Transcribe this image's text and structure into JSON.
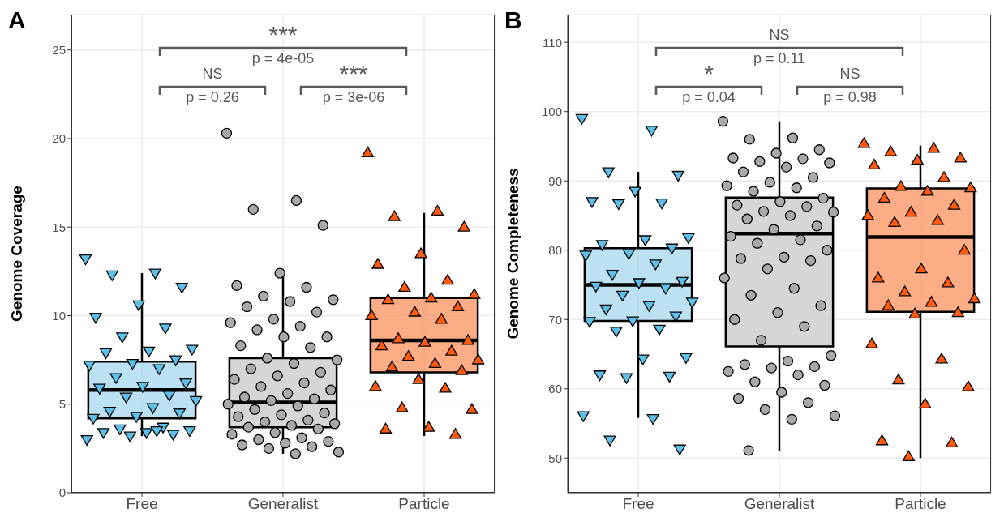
{
  "chart_data": [
    {
      "type": "box",
      "title": "A",
      "ylabel": "Genome Coverage",
      "categories": [
        "Free",
        "Generalist",
        "Particle"
      ],
      "colors": [
        "#9fd4ec",
        "#c4c4c4",
        "#fb8a52"
      ],
      "boxes": [
        {
          "low": 3.2,
          "q1": 4.2,
          "median": 5.8,
          "q3": 7.4,
          "high": 12.4
        },
        {
          "low": 2.2,
          "q1": 3.7,
          "median": 5.1,
          "q3": 7.6,
          "high": 12.3
        },
        {
          "low": 3.2,
          "q1": 6.8,
          "median": 8.6,
          "q3": 11.0,
          "high": 15.8
        }
      ],
      "series": [
        {
          "type": "scatter",
          "marker": "triangle-down",
          "color": "#5ec0e8",
          "x": [
            "Free",
            "Free",
            "Free",
            "Free",
            "Free",
            "Free",
            "Free",
            "Free",
            "Free",
            "Free",
            "Free",
            "Free",
            "Free",
            "Free",
            "Free",
            "Free",
            "Free",
            "Free",
            "Free",
            "Free",
            "Free",
            "Free",
            "Free",
            "Free",
            "Free",
            "Free",
            "Free",
            "Free",
            "Free",
            "Free",
            "Free",
            "Free",
            "Free",
            "Free",
            "Free",
            "Free"
          ],
          "values": [
            13.2,
            12.4,
            12.3,
            11.6,
            10.6,
            9.9,
            9.3,
            8.8,
            8.1,
            8.0,
            7.9,
            7.5,
            7.3,
            7.2,
            7.0,
            6.5,
            6.2,
            6.0,
            5.9,
            5.5,
            5.4,
            5.2,
            4.8,
            4.6,
            4.5,
            4.3,
            4.2,
            3.7,
            3.6,
            3.5,
            3.4,
            3.4,
            3.3,
            3.2,
            3.0,
            3.5
          ]
        },
        {
          "type": "scatter",
          "marker": "circle",
          "color": "#a9a9a9",
          "x": [
            "Generalist",
            "Generalist",
            "Generalist",
            "Generalist",
            "Generalist",
            "Generalist",
            "Generalist",
            "Generalist",
            "Generalist",
            "Generalist",
            "Generalist",
            "Generalist",
            "Generalist",
            "Generalist",
            "Generalist",
            "Generalist",
            "Generalist",
            "Generalist",
            "Generalist",
            "Generalist",
            "Generalist",
            "Generalist",
            "Generalist",
            "Generalist",
            "Generalist",
            "Generalist",
            "Generalist",
            "Generalist",
            "Generalist",
            "Generalist",
            "Generalist",
            "Generalist",
            "Generalist",
            "Generalist",
            "Generalist",
            "Generalist",
            "Generalist",
            "Generalist",
            "Generalist",
            "Generalist",
            "Generalist",
            "Generalist",
            "Generalist",
            "Generalist",
            "Generalist",
            "Generalist",
            "Generalist",
            "Generalist",
            "Generalist",
            "Generalist",
            "Generalist",
            "Generalist",
            "Generalist",
            "Generalist",
            "Generalist",
            "Generalist",
            "Generalist"
          ],
          "values": [
            20.3,
            16.5,
            16.0,
            15.1,
            12.4,
            11.7,
            11.6,
            11.1,
            10.9,
            10.8,
            10.5,
            10.2,
            9.8,
            9.6,
            9.4,
            9.2,
            8.8,
            8.8,
            8.3,
            8.2,
            7.6,
            7.5,
            7.3,
            7.0,
            6.8,
            6.6,
            6.4,
            6.2,
            6.0,
            5.8,
            5.6,
            5.4,
            5.3,
            5.2,
            5.0,
            4.9,
            4.7,
            4.5,
            4.4,
            4.3,
            4.1,
            4.0,
            3.9,
            3.8,
            3.7,
            3.6,
            3.4,
            3.3,
            3.1,
            3.0,
            2.9,
            2.8,
            2.7,
            2.6,
            2.5,
            2.3,
            2.2
          ]
        },
        {
          "type": "scatter",
          "marker": "triangle",
          "color": "#ff5a0e",
          "x": [
            "Particle",
            "Particle",
            "Particle",
            "Particle",
            "Particle",
            "Particle",
            "Particle",
            "Particle",
            "Particle",
            "Particle",
            "Particle",
            "Particle",
            "Particle",
            "Particle",
            "Particle",
            "Particle",
            "Particle",
            "Particle",
            "Particle",
            "Particle",
            "Particle",
            "Particle",
            "Particle",
            "Particle",
            "Particle",
            "Particle",
            "Particle",
            "Particle",
            "Particle",
            "Particle",
            "Particle",
            "Particle",
            "Particle"
          ],
          "values": [
            19.2,
            15.9,
            15.6,
            15.0,
            13.5,
            12.9,
            12.0,
            11.6,
            11.2,
            11.0,
            10.9,
            10.5,
            10.2,
            10.0,
            9.8,
            8.7,
            8.6,
            8.5,
            8.3,
            8.0,
            7.7,
            7.5,
            7.3,
            7.1,
            6.9,
            6.4,
            6.0,
            5.9,
            4.8,
            4.7,
            3.7,
            3.6,
            3.3
          ]
        }
      ],
      "ylim": [
        0,
        27
      ],
      "yticks": [
        0,
        5,
        10,
        15,
        20,
        25
      ],
      "grid": true,
      "annotations": [
        "***",
        "p = 4e-05",
        "NS",
        "p = 0.26",
        "***",
        "p = 3e-06"
      ]
    },
    {
      "type": "box",
      "title": "B",
      "ylabel": "Genome Completeness",
      "categories": [
        "Free",
        "Generalist",
        "Particle"
      ],
      "colors": [
        "#9fd4ec",
        "#c4c4c4",
        "#fb8a52"
      ],
      "boxes": [
        {
          "low": 55.8,
          "q1": 69.8,
          "median": 75.0,
          "q3": 80.3,
          "high": 91.3
        },
        {
          "low": 51.0,
          "q1": 66.1,
          "median": 82.4,
          "q3": 87.6,
          "high": 98.6
        },
        {
          "low": 50.0,
          "q1": 71.1,
          "median": 81.9,
          "q3": 88.9,
          "high": 95.1
        }
      ],
      "series": [
        {
          "type": "scatter",
          "marker": "triangle-down",
          "color": "#5ec0e8",
          "x": [
            "Free",
            "Free",
            "Free",
            "Free",
            "Free",
            "Free",
            "Free",
            "Free",
            "Free",
            "Free",
            "Free",
            "Free",
            "Free",
            "Free",
            "Free",
            "Free",
            "Free",
            "Free",
            "Free",
            "Free",
            "Free",
            "Free",
            "Free",
            "Free",
            "Free",
            "Free",
            "Free",
            "Free",
            "Free",
            "Free",
            "Free",
            "Free",
            "Free",
            "Free",
            "Free",
            "Free",
            "Free",
            "Free"
          ],
          "values": [
            99.0,
            97.3,
            91.3,
            90.8,
            88.5,
            87.0,
            86.8,
            86.7,
            81.8,
            81.5,
            80.8,
            80.3,
            79.5,
            79.3,
            78.0,
            76.5,
            75.5,
            75.3,
            74.8,
            74.5,
            73.5,
            72.5,
            72.0,
            71.5,
            70.5,
            69.8,
            69.7,
            68.6,
            68.3,
            64.5,
            64.3,
            62.0,
            61.8,
            61.6,
            56.1,
            55.7,
            52.6,
            51.3
          ]
        },
        {
          "type": "scatter",
          "marker": "circle",
          "color": "#a9a9a9",
          "x": [
            "Generalist",
            "Generalist",
            "Generalist",
            "Generalist",
            "Generalist",
            "Generalist",
            "Generalist",
            "Generalist",
            "Generalist",
            "Generalist",
            "Generalist",
            "Generalist",
            "Generalist",
            "Generalist",
            "Generalist",
            "Generalist",
            "Generalist",
            "Generalist",
            "Generalist",
            "Generalist",
            "Generalist",
            "Generalist",
            "Generalist",
            "Generalist",
            "Generalist",
            "Generalist",
            "Generalist",
            "Generalist",
            "Generalist",
            "Generalist",
            "Generalist",
            "Generalist",
            "Generalist",
            "Generalist",
            "Generalist",
            "Generalist",
            "Generalist",
            "Generalist",
            "Generalist",
            "Generalist",
            "Generalist",
            "Generalist",
            "Generalist",
            "Generalist",
            "Generalist",
            "Generalist",
            "Generalist",
            "Generalist",
            "Generalist",
            "Generalist",
            "Generalist",
            "Generalist",
            "Generalist",
            "Generalist",
            "Generalist",
            "Generalist",
            "Generalist",
            "Generalist"
          ],
          "values": [
            98.6,
            96.2,
            96.0,
            94.5,
            94.0,
            93.3,
            93.2,
            92.8,
            92.6,
            92.0,
            91.3,
            90.5,
            89.8,
            89.3,
            89.0,
            88.5,
            87.5,
            87.0,
            86.5,
            86.3,
            85.6,
            85.5,
            85.0,
            84.5,
            83.5,
            83.0,
            82.0,
            81.5,
            81.0,
            80.0,
            79.0,
            78.8,
            78.5,
            77.3,
            76.0,
            74.5,
            73.5,
            72.0,
            71.0,
            70.0,
            69.0,
            67.0,
            64.8,
            64.0,
            63.5,
            63.2,
            63.0,
            62.5,
            62.0,
            61.0,
            60.5,
            59.5,
            58.6,
            58.0,
            57.0,
            56.1,
            55.6,
            51.1
          ]
        },
        {
          "type": "scatter",
          "marker": "triangle",
          "color": "#ff5a0e",
          "x": [
            "Particle",
            "Particle",
            "Particle",
            "Particle",
            "Particle",
            "Particle",
            "Particle",
            "Particle",
            "Particle",
            "Particle",
            "Particle",
            "Particle",
            "Particle",
            "Particle",
            "Particle",
            "Particle",
            "Particle",
            "Particle",
            "Particle",
            "Particle",
            "Particle",
            "Particle",
            "Particle",
            "Particle",
            "Particle",
            "Particle",
            "Particle",
            "Particle",
            "Particle",
            "Particle",
            "Particle",
            "Particle",
            "Particle",
            "Particle"
          ],
          "values": [
            95.4,
            94.7,
            94.2,
            93.3,
            93.0,
            92.3,
            90.5,
            89.2,
            89.0,
            88.5,
            87.5,
            86.5,
            85.5,
            85.0,
            84.3,
            84.0,
            80.0,
            77.3,
            76.0,
            75.3,
            74.0,
            73.0,
            72.5,
            72.0,
            71.0,
            70.8,
            66.5,
            64.3,
            61.3,
            60.3,
            57.8,
            52.5,
            52.2,
            50.2
          ]
        }
      ],
      "ylim": [
        45,
        114
      ],
      "yticks": [
        50,
        60,
        70,
        80,
        90,
        100,
        110
      ],
      "grid": true,
      "annotations": [
        "NS",
        "p = 0.11",
        "*",
        "p = 0.04",
        "NS",
        "p = 0.98"
      ]
    }
  ]
}
